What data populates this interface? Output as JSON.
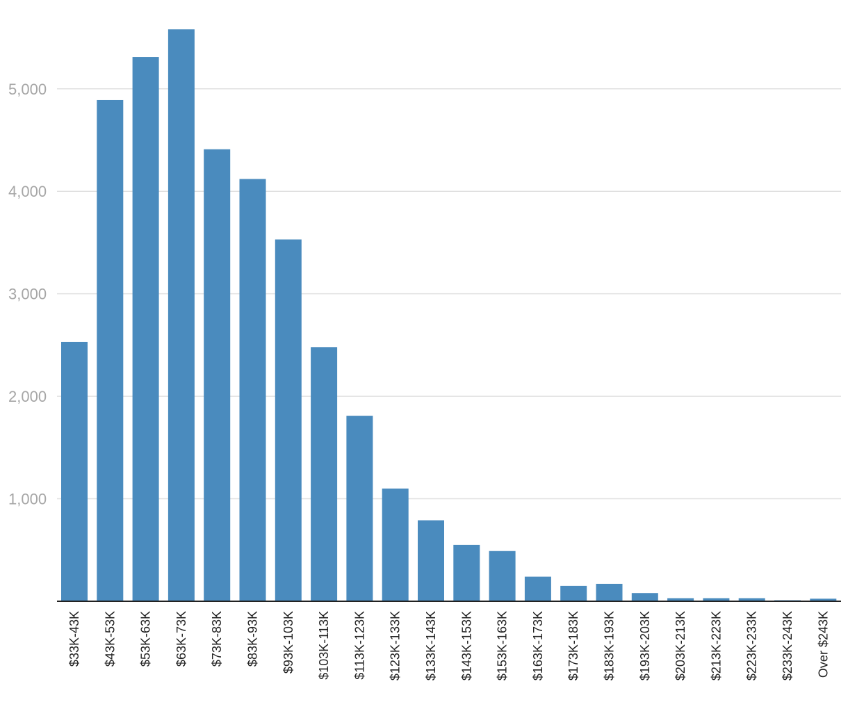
{
  "chart_data": {
    "type": "bar",
    "title": "",
    "xlabel": "",
    "ylabel": "",
    "categories": [
      "$33K-43K",
      "$43K-53K",
      "$53K-63K",
      "$63K-73K",
      "$73K-83K",
      "$83K-93K",
      "$93K-103K",
      "$103K-113K",
      "$113K-123K",
      "$123K-133K",
      "$133K-143K",
      "$143K-153K",
      "$153K-163K",
      "$163K-173K",
      "$173K-183K",
      "$183K-193K",
      "$193K-203K",
      "$203K-213K",
      "$213K-223K",
      "$223K-233K",
      "$233K-243K",
      "Over $243K"
    ],
    "values": [
      2530,
      4890,
      5310,
      5580,
      4410,
      4120,
      3530,
      2480,
      1810,
      1100,
      790,
      550,
      490,
      240,
      150,
      170,
      80,
      30,
      30,
      30,
      10,
      25
    ],
    "ylim": [
      0,
      5700
    ],
    "yticks": [
      1000,
      2000,
      3000,
      4000,
      5000
    ],
    "ytick_labels": [
      "1,000",
      "2,000",
      "3,000",
      "4,000",
      "5,000"
    ],
    "grid": true,
    "legend": "none",
    "colors": {
      "bar": "#4a8bbe",
      "grid": "#e0e0e0",
      "axis": "#222222",
      "ytick": "#a6a6a6",
      "xtick": "#222222"
    }
  }
}
